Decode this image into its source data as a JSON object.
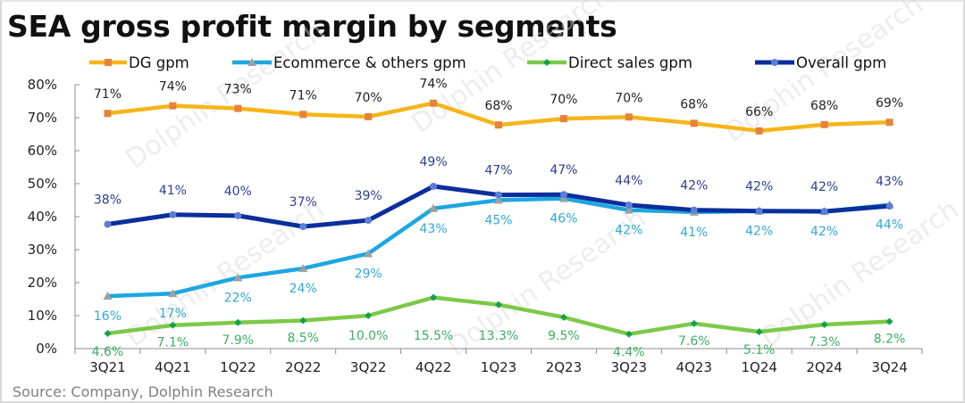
{
  "chart_data": {
    "type": "line",
    "title": "SEA gross profit margin by segments",
    "source": "Source: Company, Dolphin Research",
    "watermark": "Dolphin Research",
    "xlabel": "",
    "ylabel": "",
    "categories": [
      "3Q21",
      "4Q21",
      "1Q22",
      "2Q22",
      "3Q22",
      "4Q22",
      "1Q23",
      "2Q23",
      "3Q23",
      "4Q23",
      "1Q24",
      "2Q24",
      "3Q24"
    ],
    "ylim": [
      0,
      80
    ],
    "yticks": [
      0,
      10,
      20,
      30,
      40,
      50,
      60,
      70,
      80
    ],
    "ytick_labels": [
      "0%",
      "10%",
      "20%",
      "30%",
      "40%",
      "50%",
      "60%",
      "70%",
      "80%"
    ],
    "grid": false,
    "legend_position": "top",
    "series": [
      {
        "name": "DG gpm",
        "line_color": "#F5B519",
        "marker_color": "#E8823A",
        "marker": "square",
        "label_color": "#222222",
        "label_position": "above",
        "values": [
          71.3,
          73.6,
          72.8,
          71.0,
          70.3,
          74.4,
          67.8,
          69.7,
          70.2,
          68.3,
          66.0,
          67.9,
          68.6
        ],
        "labels": [
          "71%",
          "74%",
          "73%",
          "71%",
          "70%",
          "74%",
          "68%",
          "70%",
          "70%",
          "68%",
          "66%",
          "68%",
          "69%"
        ]
      },
      {
        "name": "Ecommerce & others gpm",
        "line_color": "#1EA6E0",
        "marker_color": "#A0A0A0",
        "marker": "triangle",
        "label_color": "#2FA8D8",
        "label_position": "below",
        "values": [
          15.9,
          16.7,
          21.5,
          24.3,
          28.8,
          42.5,
          45.0,
          45.5,
          42.0,
          41.4,
          41.7,
          41.6,
          43.6
        ],
        "labels": [
          "16%",
          "17%",
          "22%",
          "24%",
          "29%",
          "43%",
          "45%",
          "46%",
          "42%",
          "41%",
          "42%",
          "42%",
          "44%"
        ]
      },
      {
        "name": "Direct sales gpm",
        "line_color": "#7DC948",
        "marker_color": "#16A04A",
        "marker": "diamond",
        "label_color": "#3DAE62",
        "label_position": "below",
        "values": [
          4.6,
          7.1,
          7.9,
          8.5,
          10.0,
          15.5,
          13.3,
          9.5,
          4.4,
          7.6,
          5.1,
          7.3,
          8.2
        ],
        "labels": [
          "4.6%",
          "7.1%",
          "7.9%",
          "8.5%",
          "10.0%",
          "15.5%",
          "13.3%",
          "9.5%",
          "4.4%",
          "7.6%",
          "5.1%",
          "7.3%",
          "8.2%"
        ]
      },
      {
        "name": "Overall gpm",
        "line_color": "#0A2E9C",
        "marker_color": "#5B7FD6",
        "marker": "circle",
        "label_color": "#2B3F8F",
        "label_position": "above",
        "values": [
          37.7,
          40.6,
          40.3,
          37.0,
          38.9,
          49.2,
          46.6,
          46.7,
          43.5,
          42.0,
          41.7,
          41.6,
          43.2
        ],
        "labels": [
          "38%",
          "41%",
          "40%",
          "37%",
          "39%",
          "49%",
          "47%",
          "47%",
          "44%",
          "42%",
          "42%",
          "42%",
          "43%"
        ]
      }
    ]
  }
}
